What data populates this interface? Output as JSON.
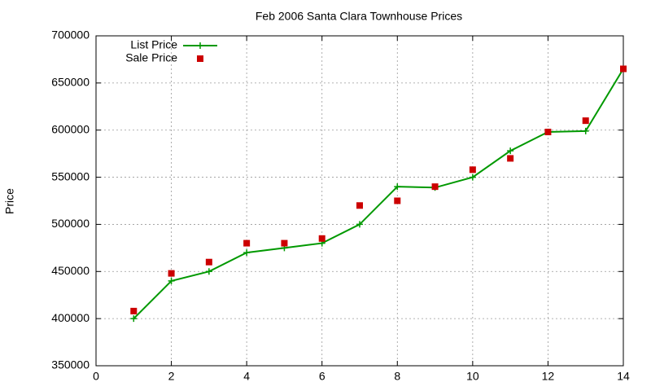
{
  "chart_data": {
    "type": "line",
    "title": "Feb 2006 Santa Clara Townhouse Prices",
    "y_label": "Price",
    "x": [
      1,
      2,
      3,
      4,
      5,
      6,
      7,
      8,
      9,
      10,
      11,
      12,
      13,
      14
    ],
    "series": [
      {
        "name": "List Price",
        "color": "#009900",
        "style": "line-points",
        "values": [
          400000,
          440000,
          450000,
          470000,
          475000,
          480000,
          500000,
          540000,
          539000,
          550000,
          578000,
          598000,
          599000,
          665000
        ]
      },
      {
        "name": "Sale Price",
        "color": "#cc0000",
        "style": "points",
        "values": [
          408000,
          448000,
          460000,
          480000,
          480000,
          485000,
          520000,
          525000,
          540000,
          558000,
          570000,
          598000,
          610000,
          665000
        ]
      }
    ],
    "xlim": [
      0,
      14
    ],
    "xticks": [
      0,
      2,
      4,
      6,
      8,
      10,
      12,
      14
    ],
    "ylim": [
      350000,
      700000
    ],
    "yticks": [
      350000,
      400000,
      450000,
      500000,
      550000,
      600000,
      650000,
      700000
    ],
    "grid": true,
    "legend": "top-left"
  }
}
